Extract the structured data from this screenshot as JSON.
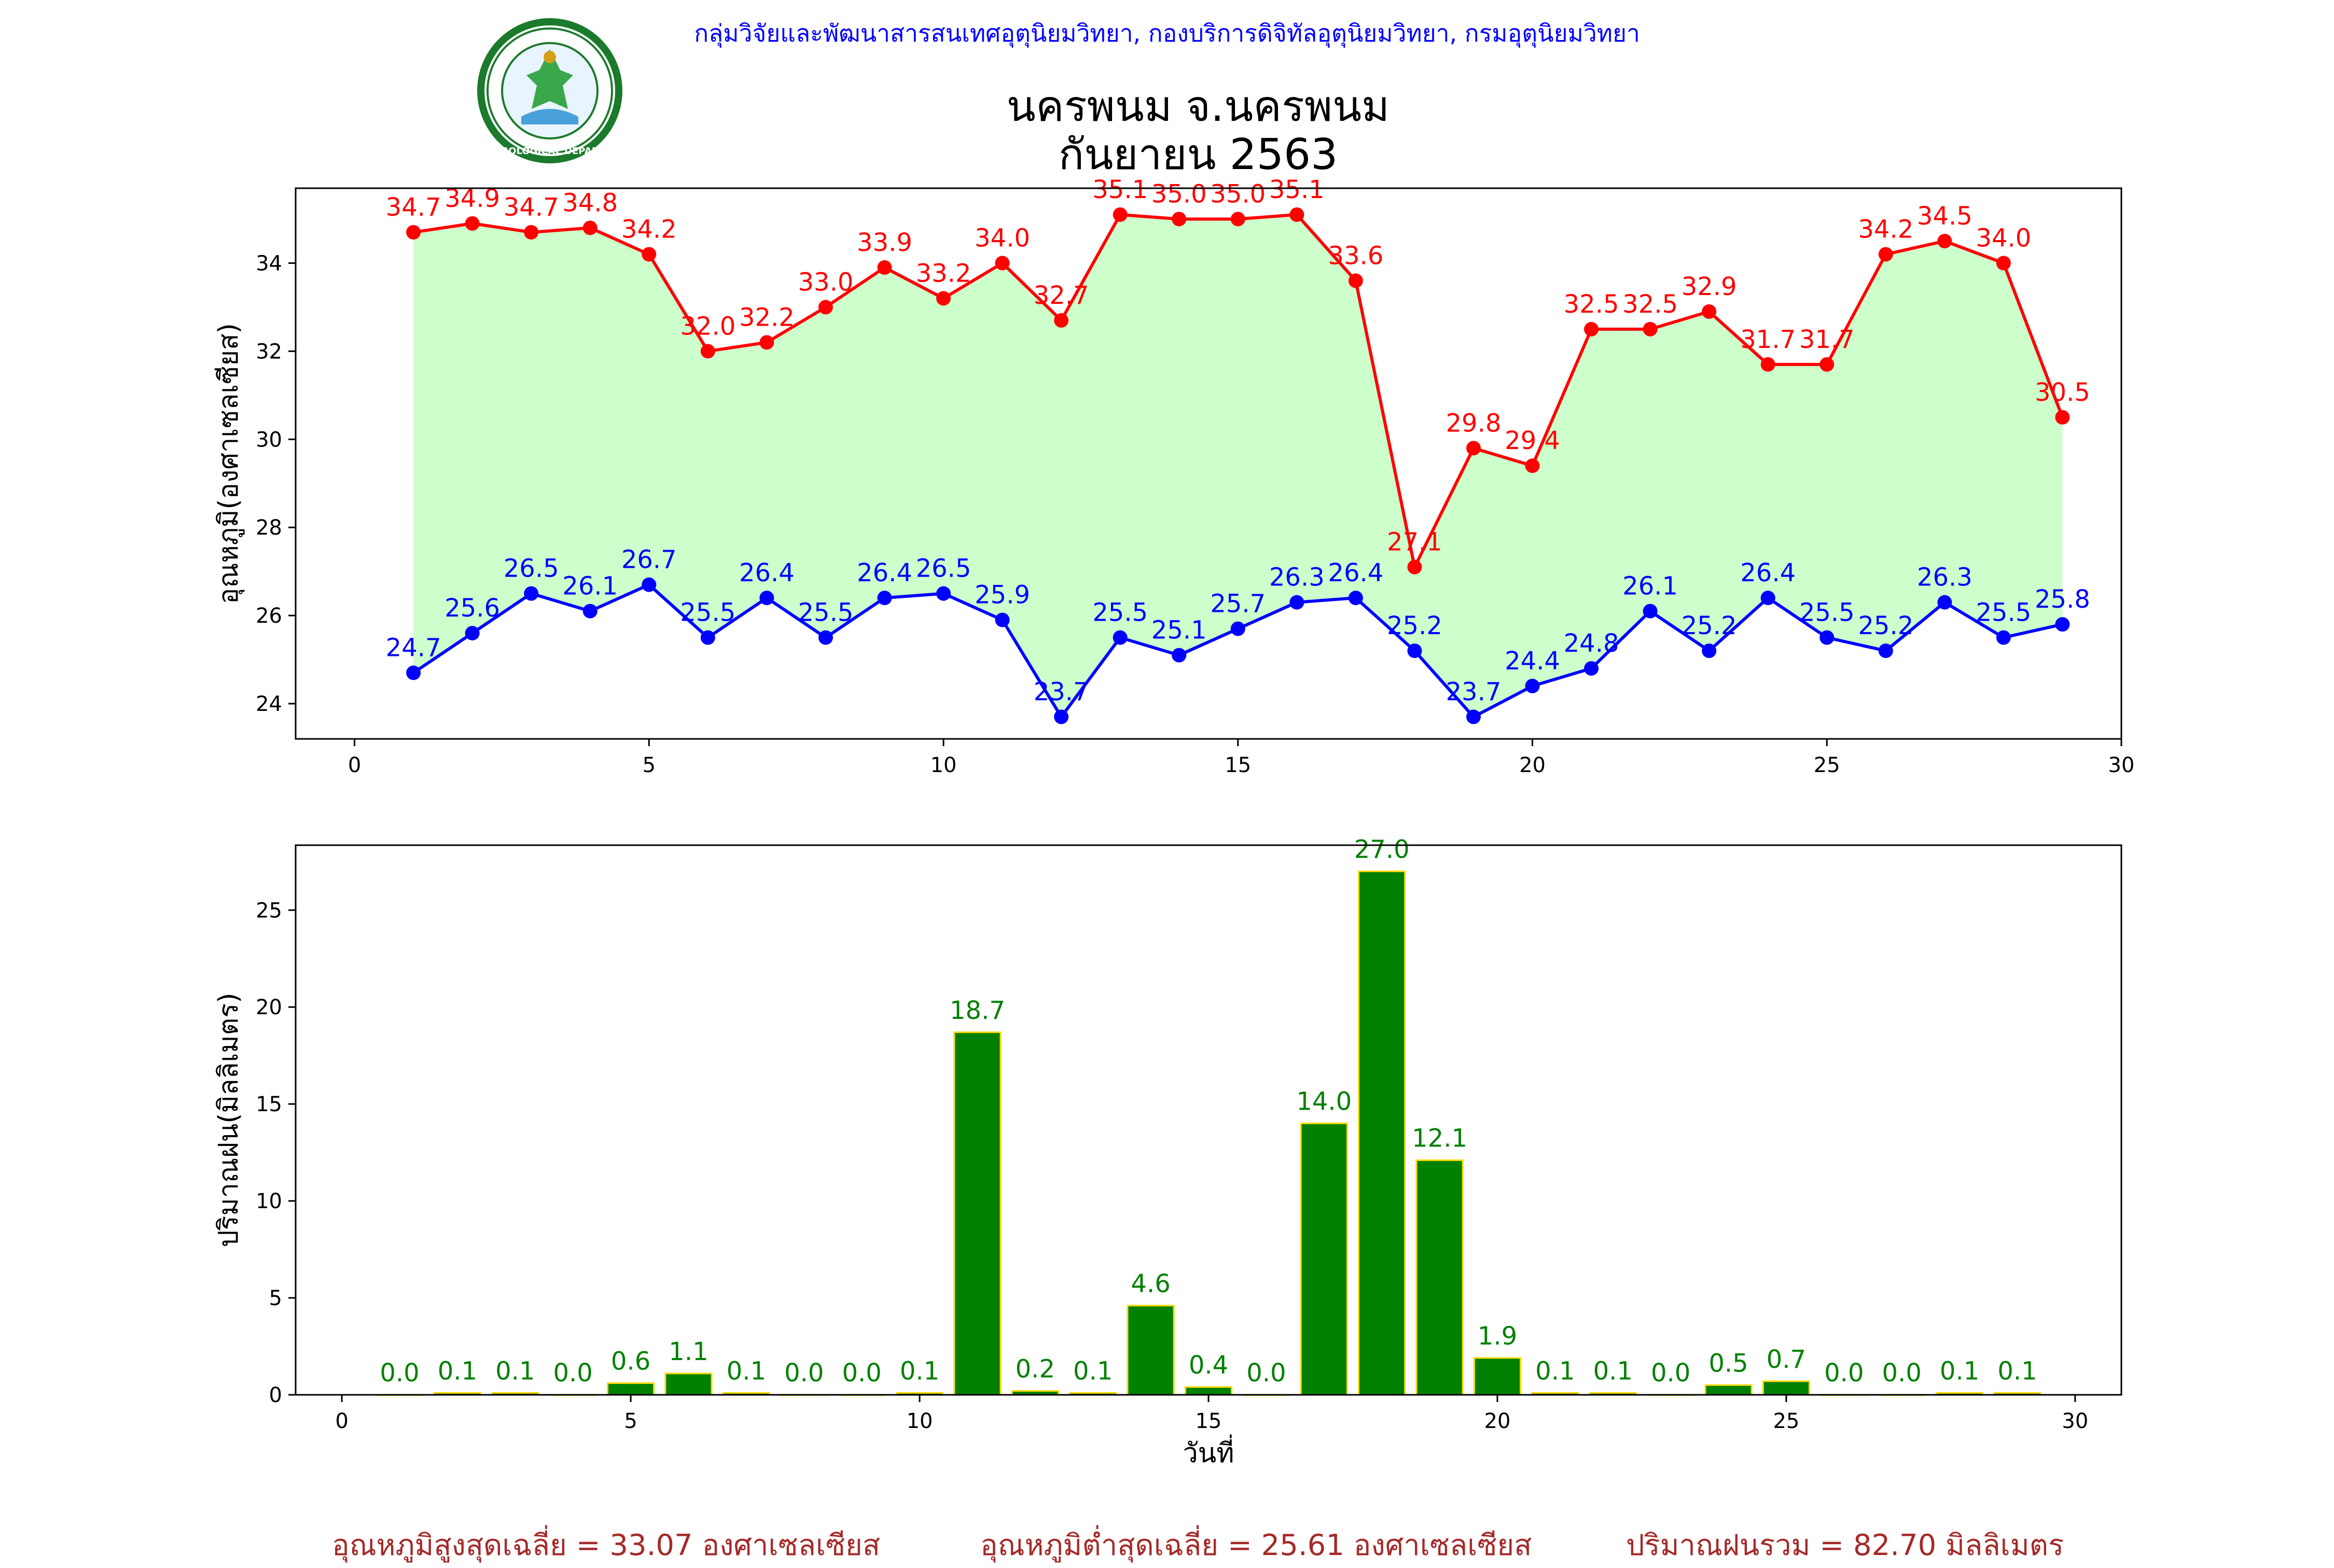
{
  "header": {
    "organization": "กลุ่มวิจัยและพัฒนาสารสนเทศอุตุนิยมวิทยา, กองบริการดิจิทัลอุตุนิยมวิทยา, กรมอุตุนิยมวิทยา",
    "logo_text": "กรมอุตุนิยมวิทยา METEOROLOGICAL DEPARTMENT"
  },
  "title_line1": "นครพนม จ.นครพนม",
  "title_line2": "กันยายน 2563",
  "chart_data": [
    {
      "type": "line",
      "ylabel": "อุณหภูมิ(องศาเซลเซียส)",
      "xlim": [
        -1,
        30
      ],
      "ylim": [
        23.2,
        35.7
      ],
      "xticks": [
        0,
        5,
        10,
        15,
        20,
        25,
        30
      ],
      "yticks": [
        24,
        26,
        28,
        30,
        32,
        34
      ],
      "x": [
        1,
        2,
        3,
        4,
        5,
        6,
        7,
        8,
        9,
        10,
        11,
        12,
        13,
        14,
        15,
        16,
        17,
        18,
        19,
        20,
        21,
        22,
        23,
        24,
        25,
        26,
        27,
        28,
        29
      ],
      "fill_between": {
        "color": "#ccffcc"
      },
      "series": [
        {
          "color": "#ff0000",
          "values": [
            34.7,
            34.9,
            34.7,
            34.8,
            34.2,
            32.0,
            32.2,
            33.0,
            33.9,
            33.2,
            34.0,
            32.7,
            35.1,
            35.0,
            35.0,
            35.1,
            33.6,
            27.1,
            29.8,
            29.4,
            32.5,
            32.5,
            32.9,
            31.7,
            31.7,
            34.2,
            34.5,
            34.0,
            30.5
          ]
        },
        {
          "color": "#0000ff",
          "values": [
            24.7,
            25.6,
            26.5,
            26.1,
            26.7,
            25.5,
            26.4,
            25.5,
            26.4,
            26.5,
            25.9,
            23.7,
            25.5,
            25.1,
            25.7,
            26.3,
            26.4,
            25.2,
            23.7,
            24.4,
            24.8,
            26.1,
            25.2,
            26.4,
            25.5,
            25.2,
            26.3,
            25.5,
            25.8
          ]
        }
      ]
    },
    {
      "type": "bar",
      "xlabel": "วันที่",
      "ylabel": "ปริมาณฝน(มิลลิเมตร)",
      "xlim": [
        -0.8,
        30.8
      ],
      "ylim": [
        0,
        28.35
      ],
      "xticks": [
        0,
        5,
        10,
        15,
        20,
        25,
        30
      ],
      "yticks": [
        0,
        5,
        10,
        15,
        20,
        25
      ],
      "bar_color": "#008000",
      "edge_color": "#ffd700",
      "label_color": "#008000",
      "x": [
        1,
        2,
        3,
        4,
        5,
        6,
        7,
        8,
        9,
        10,
        11,
        12,
        13,
        14,
        15,
        16,
        17,
        18,
        19,
        20,
        21,
        22,
        23,
        24,
        25,
        26,
        27,
        28,
        29
      ],
      "values": [
        0.0,
        0.1,
        0.1,
        0.0,
        0.6,
        1.1,
        0.1,
        0.0,
        0.0,
        0.1,
        18.7,
        0.2,
        0.1,
        4.6,
        0.4,
        0.0,
        14.0,
        27.0,
        12.1,
        1.9,
        0.1,
        0.1,
        0.0,
        0.5,
        0.7,
        0.0,
        0.0,
        0.1,
        0.1
      ]
    }
  ],
  "footer": {
    "avg_max": "อุณหภูมิสูงสุดเฉลี่ย = 33.07 องศาเซลเซียส",
    "avg_min": "อุณหภูมิต่ำสุดเฉลี่ย = 25.61 องศาเซลเซียส",
    "total_rain": "ปริมาณฝนรวม = 82.70 มิลลิเมตร"
  }
}
